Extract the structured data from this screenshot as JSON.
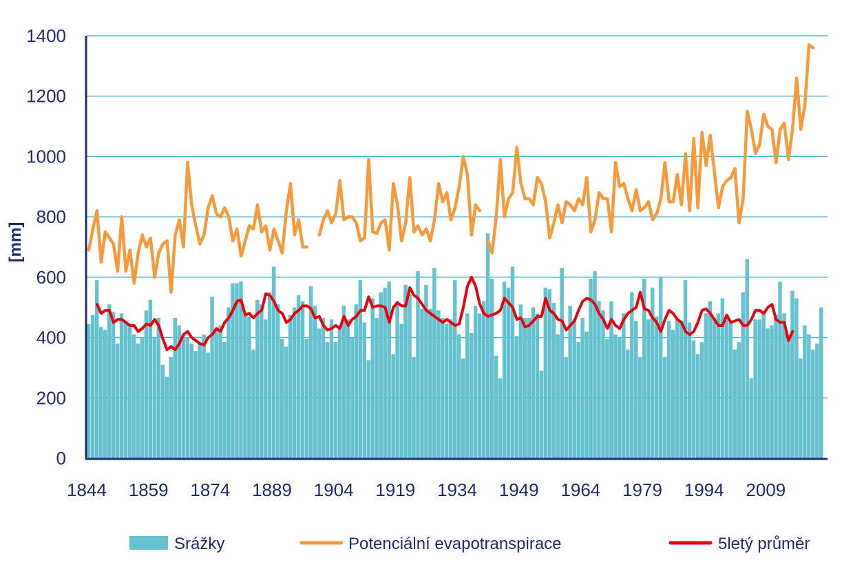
{
  "chart_data": {
    "type": "bar",
    "title": "",
    "xlabel": "",
    "ylabel": "[mm]",
    "ylim": [
      0,
      1400
    ],
    "xlim": [
      1844,
      2023
    ],
    "yticks": [
      "0",
      "200",
      "400",
      "600",
      "800",
      "1000",
      "1200",
      "1400"
    ],
    "xticks": [
      "1844",
      "1859",
      "1874",
      "1889",
      "1904",
      "1919",
      "1934",
      "1949",
      "1964",
      "1979",
      "1994",
      "2009"
    ],
    "grid": true,
    "legend_position": "bottom",
    "colors": {
      "precip": "#66c2d0",
      "pet": "#f79a3c",
      "avg": "#e8000d",
      "grid": "#5bb6cc",
      "axis": "#1f2d6b",
      "text": "#1f2d6b"
    },
    "series": [
      {
        "name": "Srážky",
        "type": "bar",
        "x_start": 1844,
        "values": [
          445,
          475,
          590,
          435,
          425,
          510,
          485,
          380,
          480,
          450,
          445,
          410,
          380,
          400,
          490,
          525,
          400,
          465,
          310,
          270,
          335,
          465,
          440,
          410,
          400,
          380,
          355,
          380,
          410,
          350,
          535,
          430,
          440,
          385,
          500,
          580,
          580,
          585,
          480,
          470,
          360,
          525,
          510,
          460,
          550,
          635,
          510,
          395,
          370,
          475,
          500,
          540,
          520,
          395,
          570,
          505,
          430,
          465,
          385,
          460,
          385,
          440,
          505,
          460,
          400,
          510,
          590,
          450,
          325,
          530,
          465,
          550,
          565,
          585,
          345,
          520,
          445,
          575,
          545,
          335,
          620,
          495,
          575,
          495,
          630,
          490,
          465,
          445,
          460,
          590,
          410,
          330,
          480,
          415,
          505,
          480,
          520,
          745,
          595,
          340,
          265,
          585,
          565,
          635,
          405,
          510,
          465,
          465,
          500,
          480,
          290,
          565,
          560,
          515,
          410,
          630,
          335,
          505,
          460,
          385,
          465,
          420,
          595,
          620,
          520,
          490,
          395,
          520,
          410,
          400,
          480,
          360,
          550,
          455,
          335,
          595,
          460,
          565,
          470,
          600,
          335,
          455,
          425,
          460,
          455,
          590,
          450,
          390,
          345,
          385,
          480,
          520,
          465,
          480,
          530,
          470,
          450,
          360,
          385,
          550,
          660,
          265,
          460,
          460,
          480,
          430,
          440,
          475,
          585,
          480,
          405,
          555,
          530,
          330,
          440,
          410,
          360,
          380,
          500
        ]
      },
      {
        "name": "Potenciální evapotranspirace",
        "type": "line",
        "x_start": 1844,
        "values": [
          690,
          760,
          820,
          650,
          750,
          730,
          710,
          620,
          800,
          620,
          690,
          580,
          680,
          740,
          700,
          730,
          600,
          680,
          710,
          720,
          550,
          740,
          790,
          700,
          980,
          840,
          770,
          710,
          740,
          830,
          870,
          810,
          800,
          830,
          800,
          720,
          760,
          670,
          720,
          770,
          760,
          840,
          750,
          770,
          690,
          760,
          720,
          680,
          820,
          910,
          740,
          790,
          700,
          700,
          null,
          null,
          740,
          790,
          820,
          780,
          810,
          920,
          790,
          800,
          800,
          780,
          720,
          730,
          990,
          750,
          745,
          780,
          790,
          690,
          910,
          840,
          720,
          780,
          930,
          750,
          770,
          740,
          760,
          720,
          790,
          910,
          850,
          880,
          790,
          830,
          900,
          1000,
          940,
          740,
          840,
          820,
          null,
          720,
          680,
          800,
          990,
          800,
          860,
          880,
          1030,
          910,
          860,
          860,
          840,
          930,
          910,
          850,
          730,
          780,
          840,
          780,
          850,
          840,
          820,
          860,
          840,
          930,
          750,
          790,
          880,
          860,
          860,
          750,
          980,
          900,
          910,
          860,
          820,
          890,
          820,
          830,
          850,
          790,
          810,
          860,
          980,
          850,
          850,
          940,
          840,
          1010,
          820,
          1060,
          830,
          1080,
          970,
          1070,
          950,
          830,
          900,
          920,
          930,
          960,
          780,
          860,
          1150,
          1090,
          1010,
          1040,
          1140,
          1100,
          1090,
          980,
          1090,
          1110,
          990,
          1090,
          1260,
          1090,
          1170,
          1370,
          1360
        ]
      },
      {
        "name": "5letý průměr",
        "type": "line",
        "x_start": 1846,
        "values": [
          510,
          480,
          490,
          490,
          450,
          460,
          460,
          450,
          440,
          440,
          420,
          430,
          445,
          440,
          460,
          440,
          395,
          360,
          370,
          360,
          380,
          410,
          420,
          400,
          390,
          380,
          375,
          400,
          410,
          430,
          420,
          450,
          465,
          490,
          520,
          525,
          475,
          480,
          465,
          480,
          490,
          545,
          540,
          520,
          490,
          480,
          450,
          460,
          480,
          490,
          505,
          505,
          495,
          465,
          470,
          440,
          425,
          430,
          440,
          430,
          470,
          440,
          460,
          470,
          490,
          490,
          535,
          500,
          505,
          505,
          500,
          450,
          500,
          515,
          505,
          505,
          565,
          540,
          530,
          510,
          490,
          480,
          470,
          460,
          450,
          460,
          450,
          440,
          445,
          500,
          570,
          600,
          570,
          510,
          480,
          470,
          475,
          480,
          490,
          530,
          515,
          500,
          460,
          465,
          435,
          440,
          455,
          470,
          470,
          530,
          490,
          480,
          460,
          455,
          425,
          440,
          455,
          490,
          520,
          530,
          525,
          510,
          480,
          460,
          430,
          460,
          440,
          430,
          460,
          480,
          490,
          500,
          550,
          495,
          490,
          465,
          450,
          420,
          460,
          490,
          480,
          460,
          450,
          420,
          410,
          420,
          450,
          490,
          495,
          480,
          460,
          440,
          440,
          475,
          450,
          455,
          460,
          440,
          440,
          460,
          490,
          490,
          480,
          500,
          510,
          460,
          450,
          450,
          390,
          420
        ]
      }
    ]
  }
}
